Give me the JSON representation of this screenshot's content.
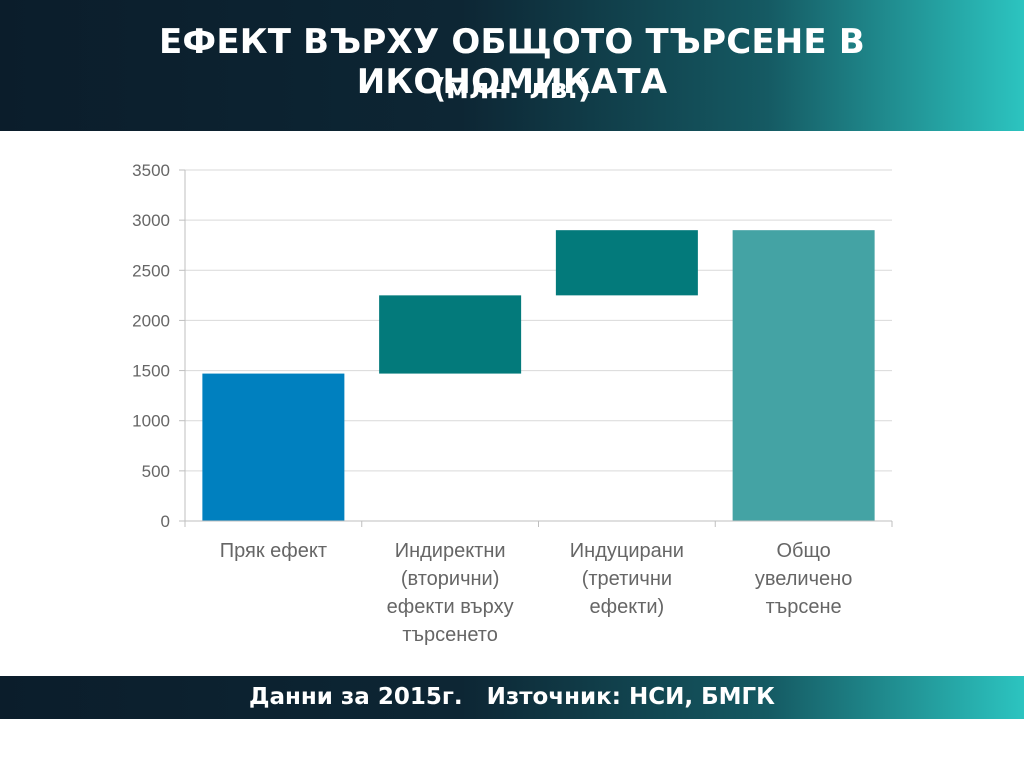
{
  "header": {
    "title": "ЕФЕКТ ВЪРХУ ОБЩОТО ТЪРСЕНЕ В ИКОНОМИКАТА",
    "subtitle": "(млн. лв.)"
  },
  "footer": {
    "text": "Данни за 2015г.   Източник: НСИ, БМГК"
  },
  "chart_data": {
    "type": "bar",
    "subtype": "waterfall",
    "categories": [
      [
        "Пряк ефект"
      ],
      [
        "Индиректни",
        "(вторични)",
        "ефекти върху",
        "търсенето"
      ],
      [
        "Индуцирани",
        "(третични",
        "ефекти)"
      ],
      [
        "Общо",
        "увеличено",
        "търсене"
      ]
    ],
    "bars": [
      {
        "start": 0,
        "end": 1470,
        "color": "#0080bf"
      },
      {
        "start": 1470,
        "end": 2250,
        "color": "#037a7b"
      },
      {
        "start": 2250,
        "end": 2900,
        "color": "#037a7b"
      },
      {
        "start": 0,
        "end": 2900,
        "color": "#44a3a4"
      }
    ],
    "ylim": [
      0,
      3500
    ],
    "yticks": [
      0,
      500,
      1000,
      1500,
      2000,
      2500,
      3000,
      3500
    ],
    "grid": true
  }
}
